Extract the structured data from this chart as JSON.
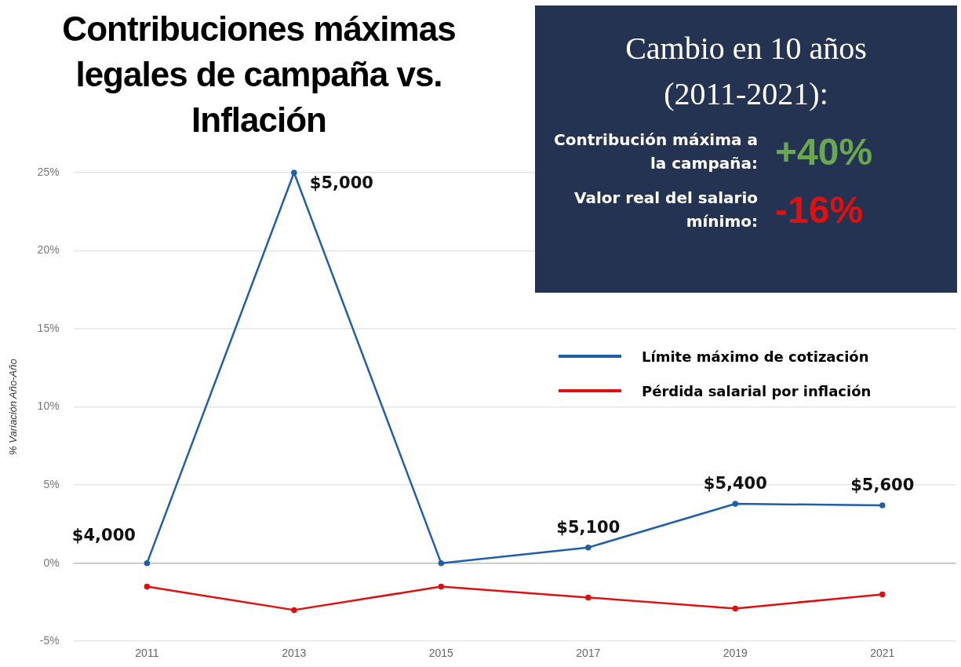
{
  "chart_data": {
    "type": "line",
    "title": "Contribuciones máximas legales de campaña vs. Inflación",
    "ylabel": "% Variación Año-Año",
    "categories": [
      "2011",
      "2013",
      "2015",
      "2017",
      "2019",
      "2021"
    ],
    "series": [
      {
        "name": "Límite máximo de cotización",
        "color": "#1f5fa8",
        "values": [
          0,
          25,
          0,
          1,
          3.8,
          3.7
        ]
      },
      {
        "name": "Pérdida salarial por inflación",
        "color": "#dd1111",
        "values": [
          -1.5,
          -3,
          -1.5,
          -2.2,
          -2.9,
          -2
        ]
      }
    ],
    "ylim": [
      -5,
      25
    ],
    "yticks": [
      {
        "value": -5,
        "label": "-5%"
      },
      {
        "value": 0,
        "label": "0%"
      },
      {
        "value": 5,
        "label": "5%"
      },
      {
        "value": 10,
        "label": "10%"
      },
      {
        "value": 15,
        "label": "15%"
      },
      {
        "value": 20,
        "label": "20%"
      },
      {
        "value": 25,
        "label": "25%"
      }
    ],
    "grid": "y",
    "legend": "right",
    "marker": "circle",
    "line_style": "solid",
    "annotations": [
      "Cambio en 10 años (2011-2021):",
      "Contribución máxima a la campaña:",
      "+40%",
      "Valor real del salario mínimo:",
      "-16%",
      {
        "text": "$4,000",
        "x": "2011",
        "y": 0
      },
      {
        "text": "$5,000",
        "x": "2013",
        "y": 25
      },
      {
        "text": "$5,100",
        "x": "2017",
        "y": 1
      },
      {
        "text": "$5,400",
        "x": "2019",
        "y": 3.8
      },
      {
        "text": "$5,600",
        "x": "2021",
        "y": 3.7
      }
    ]
  }
}
